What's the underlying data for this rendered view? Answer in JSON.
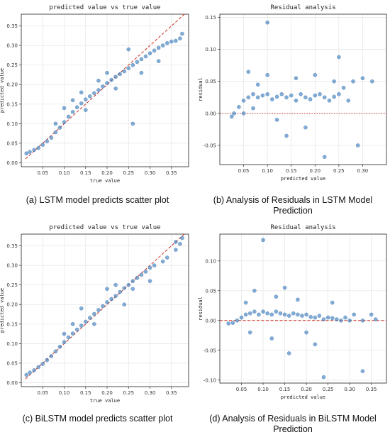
{
  "captions": {
    "a": "(a) LSTM model predicts scatter plot",
    "b": "(b) Analysis of Residuals in LSTM Model Prediction",
    "c": "(c) BiLSTM model predicts scatter plot",
    "d": "(d) Analysis of Residuals in BiLSTM Model Prediction"
  },
  "chart_data": [
    {
      "id": "a",
      "type": "scatter",
      "title": "predicted value vs true value",
      "xlabel": "true value",
      "ylabel": "predicted value",
      "xlim": [
        0.0,
        0.39
      ],
      "ylim": [
        -0.01,
        0.38
      ],
      "xticks": [
        0.05,
        0.1,
        0.15,
        0.2,
        0.25,
        0.3,
        0.35
      ],
      "xtick_labels": [
        "0.05",
        "0.10",
        "0.15",
        "0.20",
        "0.25",
        "0.30",
        "0.35"
      ],
      "yticks": [
        0.0,
        0.05,
        0.1,
        0.15,
        0.2,
        0.25,
        0.3,
        0.35
      ],
      "ytick_labels": [
        "0.00",
        "0.05",
        "0.10",
        "0.15",
        "0.20",
        "0.25",
        "0.30",
        "0.35"
      ],
      "grid": true,
      "reference_line": {
        "style": "dashed",
        "color": "#cc2a1f",
        "points": [
          [
            0.01,
            0.01
          ],
          [
            0.38,
            0.38
          ]
        ]
      },
      "point_color": "#3f7fbf",
      "points": [
        [
          0.012,
          0.024
        ],
        [
          0.02,
          0.028
        ],
        [
          0.03,
          0.033
        ],
        [
          0.04,
          0.038
        ],
        [
          0.05,
          0.046
        ],
        [
          0.06,
          0.055
        ],
        [
          0.07,
          0.064
        ],
        [
          0.08,
          0.078
        ],
        [
          0.09,
          0.09
        ],
        [
          0.1,
          0.104
        ],
        [
          0.11,
          0.118
        ],
        [
          0.12,
          0.13
        ],
        [
          0.13,
          0.142
        ],
        [
          0.14,
          0.152
        ],
        [
          0.15,
          0.162
        ],
        [
          0.16,
          0.17
        ],
        [
          0.17,
          0.178
        ],
        [
          0.18,
          0.186
        ],
        [
          0.19,
          0.195
        ],
        [
          0.2,
          0.204
        ],
        [
          0.21,
          0.212
        ],
        [
          0.22,
          0.22
        ],
        [
          0.23,
          0.227
        ],
        [
          0.24,
          0.234
        ],
        [
          0.25,
          0.242
        ],
        [
          0.26,
          0.25
        ],
        [
          0.27,
          0.258
        ],
        [
          0.28,
          0.265
        ],
        [
          0.29,
          0.272
        ],
        [
          0.3,
          0.28
        ],
        [
          0.31,
          0.287
        ],
        [
          0.32,
          0.294
        ],
        [
          0.33,
          0.3
        ],
        [
          0.34,
          0.306
        ],
        [
          0.36,
          0.312
        ],
        [
          0.37,
          0.318
        ],
        [
          0.375,
          0.33
        ],
        [
          0.1,
          0.14
        ],
        [
          0.12,
          0.16
        ],
        [
          0.15,
          0.135
        ],
        [
          0.18,
          0.21
        ],
        [
          0.22,
          0.19
        ],
        [
          0.25,
          0.29
        ],
        [
          0.26,
          0.1
        ],
        [
          0.28,
          0.23
        ],
        [
          0.32,
          0.26
        ],
        [
          0.35,
          0.31
        ],
        [
          0.08,
          0.1
        ],
        [
          0.14,
          0.18
        ],
        [
          0.2,
          0.23
        ]
      ]
    },
    {
      "id": "b",
      "type": "scatter",
      "title": "Residual analysis",
      "xlabel": "predicted value",
      "ylabel": "residual",
      "xlim": [
        0.0,
        0.35
      ],
      "ylim": [
        -0.08,
        0.155
      ],
      "xticks": [
        0.05,
        0.1,
        0.15,
        0.2,
        0.25,
        0.3
      ],
      "xtick_labels": [
        "0.05",
        "0.10",
        "0.15",
        "0.20",
        "0.25",
        "0.30"
      ],
      "yticks": [
        -0.05,
        0.0,
        0.05,
        0.1,
        0.15
      ],
      "ytick_labels": [
        "-0.05",
        "0.00",
        "0.05",
        "0.10",
        "0.15"
      ],
      "grid": true,
      "reference_line": {
        "style": "dotted",
        "color": "#cc2a1f",
        "y": 0
      },
      "point_color": "#3f7fbf",
      "points": [
        [
          0.025,
          -0.005
        ],
        [
          0.03,
          0.0
        ],
        [
          0.04,
          0.01
        ],
        [
          0.05,
          0.02
        ],
        [
          0.06,
          0.025
        ],
        [
          0.07,
          0.03
        ],
        [
          0.08,
          0.025
        ],
        [
          0.09,
          0.028
        ],
        [
          0.1,
          0.03
        ],
        [
          0.11,
          0.022
        ],
        [
          0.12,
          0.026
        ],
        [
          0.13,
          0.03
        ],
        [
          0.14,
          0.025
        ],
        [
          0.15,
          0.028
        ],
        [
          0.16,
          0.02
        ],
        [
          0.17,
          0.03
        ],
        [
          0.18,
          0.025
        ],
        [
          0.19,
          0.022
        ],
        [
          0.2,
          0.028
        ],
        [
          0.21,
          0.03
        ],
        [
          0.22,
          0.025
        ],
        [
          0.23,
          0.02
        ],
        [
          0.24,
          0.026
        ],
        [
          0.25,
          0.03
        ],
        [
          0.26,
          0.04
        ],
        [
          0.27,
          0.02
        ],
        [
          0.28,
          0.05
        ],
        [
          0.3,
          0.055
        ],
        [
          0.32,
          0.05
        ],
        [
          0.1,
          0.142
        ],
        [
          0.06,
          0.065
        ],
        [
          0.25,
          0.088
        ],
        [
          0.29,
          -0.05
        ],
        [
          0.22,
          -0.068
        ],
        [
          0.14,
          -0.035
        ],
        [
          0.18,
          -0.022
        ],
        [
          0.12,
          -0.01
        ],
        [
          0.2,
          0.06
        ],
        [
          0.16,
          0.055
        ],
        [
          0.08,
          0.045
        ],
        [
          0.1,
          0.06
        ],
        [
          0.24,
          0.05
        ],
        [
          0.05,
          0.0
        ],
        [
          0.07,
          0.008
        ]
      ]
    },
    {
      "id": "c",
      "type": "scatter",
      "title": "predicted value vs true value",
      "xlabel": "true value",
      "ylabel": "predicted value",
      "xlim": [
        0.0,
        0.39
      ],
      "ylim": [
        -0.01,
        0.38
      ],
      "xticks": [
        0.05,
        0.1,
        0.15,
        0.2,
        0.25,
        0.3,
        0.35
      ],
      "xtick_labels": [
        "0.05",
        "0.10",
        "0.15",
        "0.20",
        "0.25",
        "0.30",
        "0.35"
      ],
      "yticks": [
        0.0,
        0.05,
        0.1,
        0.15,
        0.2,
        0.25,
        0.3,
        0.35
      ],
      "ytick_labels": [
        "0.00",
        "0.05",
        "0.10",
        "0.15",
        "0.20",
        "0.25",
        "0.30",
        "0.35"
      ],
      "grid": true,
      "reference_line": {
        "style": "dashed",
        "color": "#cc2a1f",
        "points": [
          [
            0.01,
            0.01
          ],
          [
            0.38,
            0.38
          ]
        ]
      },
      "point_color": "#3f7fbf",
      "points": [
        [
          0.012,
          0.02
        ],
        [
          0.02,
          0.026
        ],
        [
          0.03,
          0.032
        ],
        [
          0.04,
          0.04
        ],
        [
          0.05,
          0.048
        ],
        [
          0.06,
          0.058
        ],
        [
          0.07,
          0.068
        ],
        [
          0.08,
          0.08
        ],
        [
          0.09,
          0.092
        ],
        [
          0.1,
          0.104
        ],
        [
          0.11,
          0.116
        ],
        [
          0.12,
          0.126
        ],
        [
          0.13,
          0.136
        ],
        [
          0.14,
          0.146
        ],
        [
          0.15,
          0.156
        ],
        [
          0.16,
          0.166
        ],
        [
          0.17,
          0.176
        ],
        [
          0.18,
          0.186
        ],
        [
          0.19,
          0.196
        ],
        [
          0.2,
          0.206
        ],
        [
          0.21,
          0.214
        ],
        [
          0.22,
          0.222
        ],
        [
          0.23,
          0.232
        ],
        [
          0.24,
          0.242
        ],
        [
          0.25,
          0.25
        ],
        [
          0.26,
          0.26
        ],
        [
          0.27,
          0.268
        ],
        [
          0.28,
          0.276
        ],
        [
          0.29,
          0.284
        ],
        [
          0.3,
          0.294
        ],
        [
          0.31,
          0.3
        ],
        [
          0.33,
          0.31
        ],
        [
          0.34,
          0.32
        ],
        [
          0.36,
          0.34
        ],
        [
          0.37,
          0.355
        ],
        [
          0.375,
          0.37
        ],
        [
          0.14,
          0.19
        ],
        [
          0.12,
          0.15
        ],
        [
          0.24,
          0.2
        ],
        [
          0.26,
          0.24
        ],
        [
          0.2,
          0.24
        ],
        [
          0.3,
          0.26
        ],
        [
          0.22,
          0.25
        ],
        [
          0.17,
          0.15
        ],
        [
          0.1,
          0.125
        ],
        [
          0.36,
          0.36
        ]
      ]
    },
    {
      "id": "d",
      "type": "scatter",
      "title": "Residual analysis",
      "xlabel": "predicted value",
      "ylabel": "residual",
      "xlim": [
        0.0,
        0.385
      ],
      "ylim": [
        -0.105,
        0.145
      ],
      "xticks": [
        0.05,
        0.1,
        0.15,
        0.2,
        0.25,
        0.3,
        0.35
      ],
      "xtick_labels": [
        "0.05",
        "0.10",
        "0.15",
        "0.20",
        "0.25",
        "0.30",
        "0.35"
      ],
      "yticks": [
        -0.1,
        -0.05,
        0.0,
        0.05,
        0.1
      ],
      "ytick_labels": [
        "-0.10",
        "-0.05",
        "0.00",
        "0.05",
        "0.10"
      ],
      "grid": true,
      "reference_line": {
        "style": "dashed",
        "color": "#cc2a1f",
        "y": 0
      },
      "point_color": "#3f7fbf",
      "points": [
        [
          0.02,
          -0.005
        ],
        [
          0.03,
          -0.004
        ],
        [
          0.04,
          0.0
        ],
        [
          0.05,
          0.005
        ],
        [
          0.06,
          0.01
        ],
        [
          0.07,
          0.012
        ],
        [
          0.08,
          0.015
        ],
        [
          0.09,
          0.01
        ],
        [
          0.1,
          0.015
        ],
        [
          0.11,
          0.012
        ],
        [
          0.12,
          0.01
        ],
        [
          0.13,
          0.015
        ],
        [
          0.14,
          0.012
        ],
        [
          0.15,
          0.01
        ],
        [
          0.16,
          0.008
        ],
        [
          0.17,
          0.012
        ],
        [
          0.18,
          0.01
        ],
        [
          0.19,
          0.008
        ],
        [
          0.2,
          0.01
        ],
        [
          0.21,
          0.006
        ],
        [
          0.22,
          0.005
        ],
        [
          0.23,
          0.008
        ],
        [
          0.24,
          0.002
        ],
        [
          0.25,
          0.005
        ],
        [
          0.26,
          0.004
        ],
        [
          0.27,
          0.002
        ],
        [
          0.28,
          0.0
        ],
        [
          0.29,
          0.005
        ],
        [
          0.3,
          0.0
        ],
        [
          0.31,
          0.01
        ],
        [
          0.33,
          0.0
        ],
        [
          0.35,
          0.01
        ],
        [
          0.36,
          0.002
        ],
        [
          0.1,
          0.135
        ],
        [
          0.08,
          0.05
        ],
        [
          0.15,
          0.055
        ],
        [
          0.12,
          -0.03
        ],
        [
          0.16,
          -0.055
        ],
        [
          0.22,
          -0.04
        ],
        [
          0.24,
          -0.095
        ],
        [
          0.33,
          -0.085
        ],
        [
          0.2,
          -0.02
        ],
        [
          0.06,
          0.03
        ],
        [
          0.13,
          0.04
        ],
        [
          0.18,
          0.035
        ],
        [
          0.26,
          0.03
        ],
        [
          0.07,
          -0.02
        ]
      ]
    }
  ]
}
